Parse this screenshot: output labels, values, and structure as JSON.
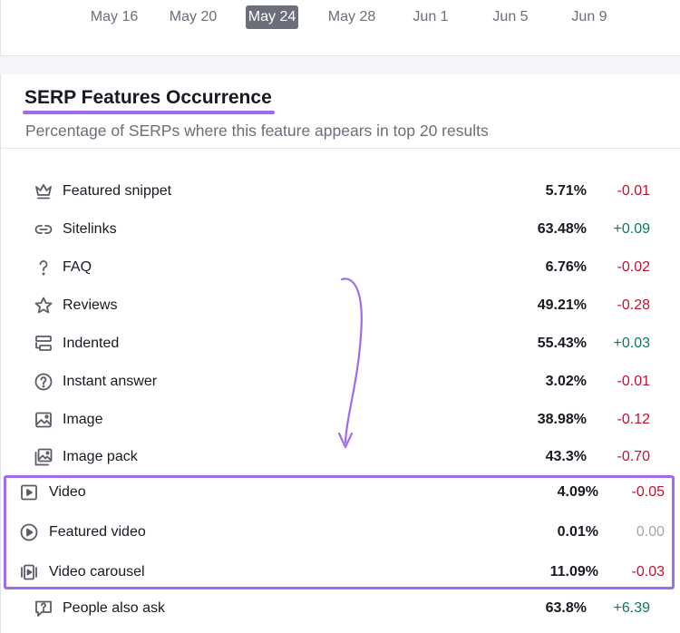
{
  "timeline": {
    "dates": [
      "May 16",
      "May 20",
      "May 24",
      "May 28",
      "Jun 1",
      "Jun 5",
      "Jun 9"
    ],
    "active": "May 24"
  },
  "card": {
    "title": "SERP Features Occurrence",
    "subtitle": "Percentage of SERPs where this feature appears in top 20 results"
  },
  "features": [
    {
      "label": "Featured snippet",
      "pct": "5.71%",
      "delta": "-0.01",
      "icon": "crown-icon"
    },
    {
      "label": "Sitelinks",
      "pct": "63.48%",
      "delta": "+0.09",
      "icon": "link-icon"
    },
    {
      "label": "FAQ",
      "pct": "6.76%",
      "delta": "-0.02",
      "icon": "question-icon"
    },
    {
      "label": "Reviews",
      "pct": "49.21%",
      "delta": "-0.28",
      "icon": "star-icon"
    },
    {
      "label": "Indented",
      "pct": "55.43%",
      "delta": "+0.03",
      "icon": "indented-icon"
    },
    {
      "label": "Instant answer",
      "pct": "3.02%",
      "delta": "-0.01",
      "icon": "question-circle-icon"
    },
    {
      "label": "Image",
      "pct": "38.98%",
      "delta": "-0.12",
      "icon": "image-icon"
    },
    {
      "label": "Image pack",
      "pct": "43.3%",
      "delta": "-0.70",
      "icon": "image-pack-icon"
    },
    {
      "label": "Video",
      "pct": "4.09%",
      "delta": "-0.05",
      "icon": "video-icon"
    },
    {
      "label": "Featured video",
      "pct": "0.01%",
      "delta": "0.00",
      "icon": "play-circle-icon"
    },
    {
      "label": "Video carousel",
      "pct": "11.09%",
      "delta": "-0.03",
      "icon": "video-carousel-icon"
    },
    {
      "label": "People also ask",
      "pct": "63.8%",
      "delta": "+6.39",
      "icon": "chat-question-icon"
    }
  ],
  "colors": {
    "accent": "#9d6cf0",
    "negative": "#c4112f",
    "positive": "#0b7a5a",
    "neutral": "#a4a6ad"
  }
}
